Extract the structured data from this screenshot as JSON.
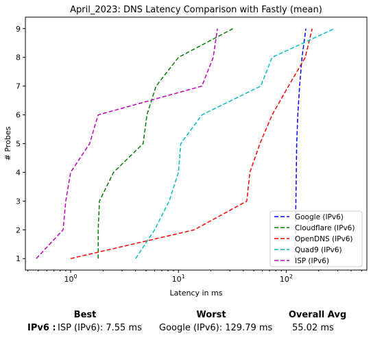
{
  "chart_data": {
    "type": "line",
    "title": "April_2023: DNS Latency Comparison with Fastly (mean)",
    "xlabel": "Latency in ms",
    "ylabel": "# Probes",
    "xscale": "log",
    "xlim": [
      0.38,
      560
    ],
    "ylim": [
      0.6,
      9.4
    ],
    "xticks": [
      {
        "value": 1,
        "base": "10",
        "exp": "0"
      },
      {
        "value": 10,
        "base": "10",
        "exp": "1"
      },
      {
        "value": 100,
        "base": "10",
        "exp": "2"
      }
    ],
    "yticks": [
      1,
      2,
      3,
      4,
      5,
      6,
      7,
      8,
      9
    ],
    "grid": false,
    "legend_position": "lower-right",
    "series": [
      {
        "name": "Google (IPv6)",
        "color": "#0000ff",
        "points": [
          [
            120,
            1
          ],
          [
            122,
            2
          ],
          [
            123,
            3
          ],
          [
            124,
            4
          ],
          [
            125,
            5
          ],
          [
            128,
            6
          ],
          [
            133,
            7
          ],
          [
            140,
            8
          ],
          [
            152,
            9
          ]
        ]
      },
      {
        "name": "Cloudflare (IPv6)",
        "color": "#008000",
        "points": [
          [
            1.8,
            1
          ],
          [
            1.8,
            2
          ],
          [
            1.85,
            3
          ],
          [
            2.5,
            4
          ],
          [
            4.7,
            5
          ],
          [
            5.1,
            6
          ],
          [
            6.2,
            7
          ],
          [
            10,
            8
          ],
          [
            32,
            9
          ]
        ]
      },
      {
        "name": "OpenDNS (IPv6)",
        "color": "#ff0000",
        "points": [
          [
            1,
            1
          ],
          [
            14,
            2
          ],
          [
            43,
            3
          ],
          [
            46,
            4
          ],
          [
            57,
            5
          ],
          [
            74,
            6
          ],
          [
            105,
            7
          ],
          [
            150,
            8
          ],
          [
            174,
            9
          ]
        ]
      },
      {
        "name": "Quad9 (IPv6)",
        "color": "#00bfbf",
        "points": [
          [
            4,
            1
          ],
          [
            6,
            2
          ],
          [
            8.2,
            3
          ],
          [
            10,
            4
          ],
          [
            10.5,
            5
          ],
          [
            16.5,
            6
          ],
          [
            58,
            7
          ],
          [
            74,
            8
          ],
          [
            280,
            9
          ]
        ]
      },
      {
        "name": "ISP (IPv6)",
        "color": "#bf00bf",
        "points": [
          [
            0.48,
            1
          ],
          [
            0.85,
            2
          ],
          [
            0.9,
            3
          ],
          [
            1,
            4
          ],
          [
            1.5,
            5
          ],
          [
            1.8,
            6
          ],
          [
            16.5,
            7
          ],
          [
            21,
            8
          ],
          [
            23,
            9
          ]
        ]
      }
    ]
  },
  "summary": {
    "best_header": "Best",
    "worst_header": "Worst",
    "avg_header": "Overall Avg",
    "row_label": "IPv6 :",
    "best_value": "ISP (IPv6): 7.55 ms",
    "worst_value": "Google (IPv6): 129.79 ms",
    "avg_value": "55.02 ms"
  }
}
